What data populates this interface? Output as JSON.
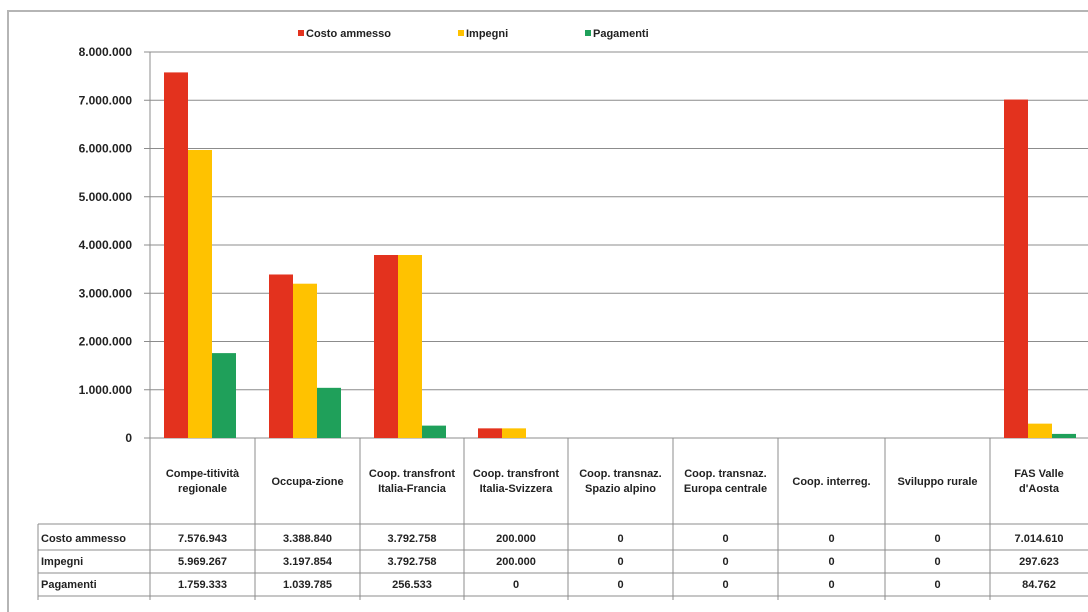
{
  "chart_data": {
    "type": "bar",
    "categories": [
      "Compe-titività regionale",
      "Occupa-zione",
      "Coop. transfront Italia-Francia",
      "Coop. transfront Italia-Svizzera",
      "Coop. transnaz. Spazio alpino",
      "Coop. transnaz. Europa centrale",
      "Coop. interreg.",
      "Sviluppo rurale",
      "FAS Valle d'Aosta"
    ],
    "series": [
      {
        "name": "Costo ammesso",
        "color": "#e3321e",
        "values": [
          7576943,
          3388840,
          3792758,
          200000,
          0,
          0,
          0,
          0,
          7014610
        ],
        "labels": [
          "7.576.943",
          "3.388.840",
          "3.792.758",
          "200.000",
          "0",
          "0",
          "0",
          "0",
          "7.014.610"
        ]
      },
      {
        "name": "Impegni",
        "color": "#ffc200",
        "values": [
          5969267,
          3197854,
          3792758,
          200000,
          0,
          0,
          0,
          0,
          297623
        ],
        "labels": [
          "5.969.267",
          "3.197.854",
          "3.792.758",
          "200.000",
          "0",
          "0",
          "0",
          "0",
          "297.623"
        ]
      },
      {
        "name": "Pagamenti",
        "color": "#1fa05a",
        "values": [
          1759333,
          1039785,
          256533,
          0,
          0,
          0,
          0,
          0,
          84762
        ],
        "labels": [
          "1.759.333",
          "1.039.785",
          "256.533",
          "0",
          "0",
          "0",
          "0",
          "0",
          "84.762"
        ]
      }
    ],
    "y_ticks": [
      "0",
      "1.000.000",
      "2.000.000",
      "3.000.000",
      "4.000.000",
      "5.000.000",
      "6.000.000",
      "7.000.000",
      "8.000.000"
    ],
    "ylim": [
      0,
      8000000
    ],
    "grid": true,
    "legend_position": "top",
    "data_table": true
  }
}
